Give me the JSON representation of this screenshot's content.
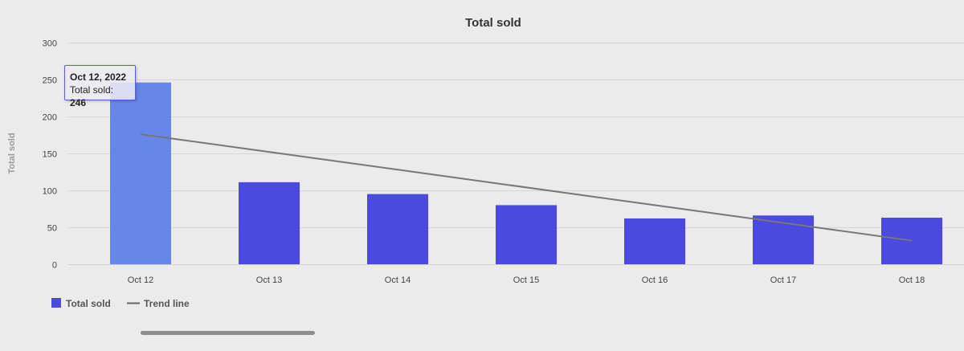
{
  "chart_data": {
    "type": "bar",
    "title": "Total sold",
    "ylabel": "Total sold",
    "xlabel": "",
    "categories": [
      "Oct 12",
      "Oct 13",
      "Oct 14",
      "Oct 15",
      "Oct 16",
      "Oct 17",
      "Oct 18"
    ],
    "series": [
      {
        "name": "Total sold",
        "values": [
          246,
          111,
          95,
          80,
          62,
          66,
          63
        ],
        "color": "#4a4adf",
        "highlight_color": "#6687ea"
      }
    ],
    "trend_line": {
      "name": "Trend line",
      "start_value": 176,
      "end_value": 32,
      "color": "#777777"
    },
    "ylim": [
      0,
      300
    ],
    "yticks": [
      "0",
      "50",
      "100",
      "150",
      "200",
      "250",
      "300"
    ],
    "grid": true,
    "legend": "bottom-left",
    "highlighted_index": 0
  },
  "tooltip": {
    "date": "Oct 12, 2022",
    "label": "Total sold: ",
    "value": "246"
  },
  "legend": {
    "bars_label": "Total sold",
    "trend_label": "Trend line"
  }
}
